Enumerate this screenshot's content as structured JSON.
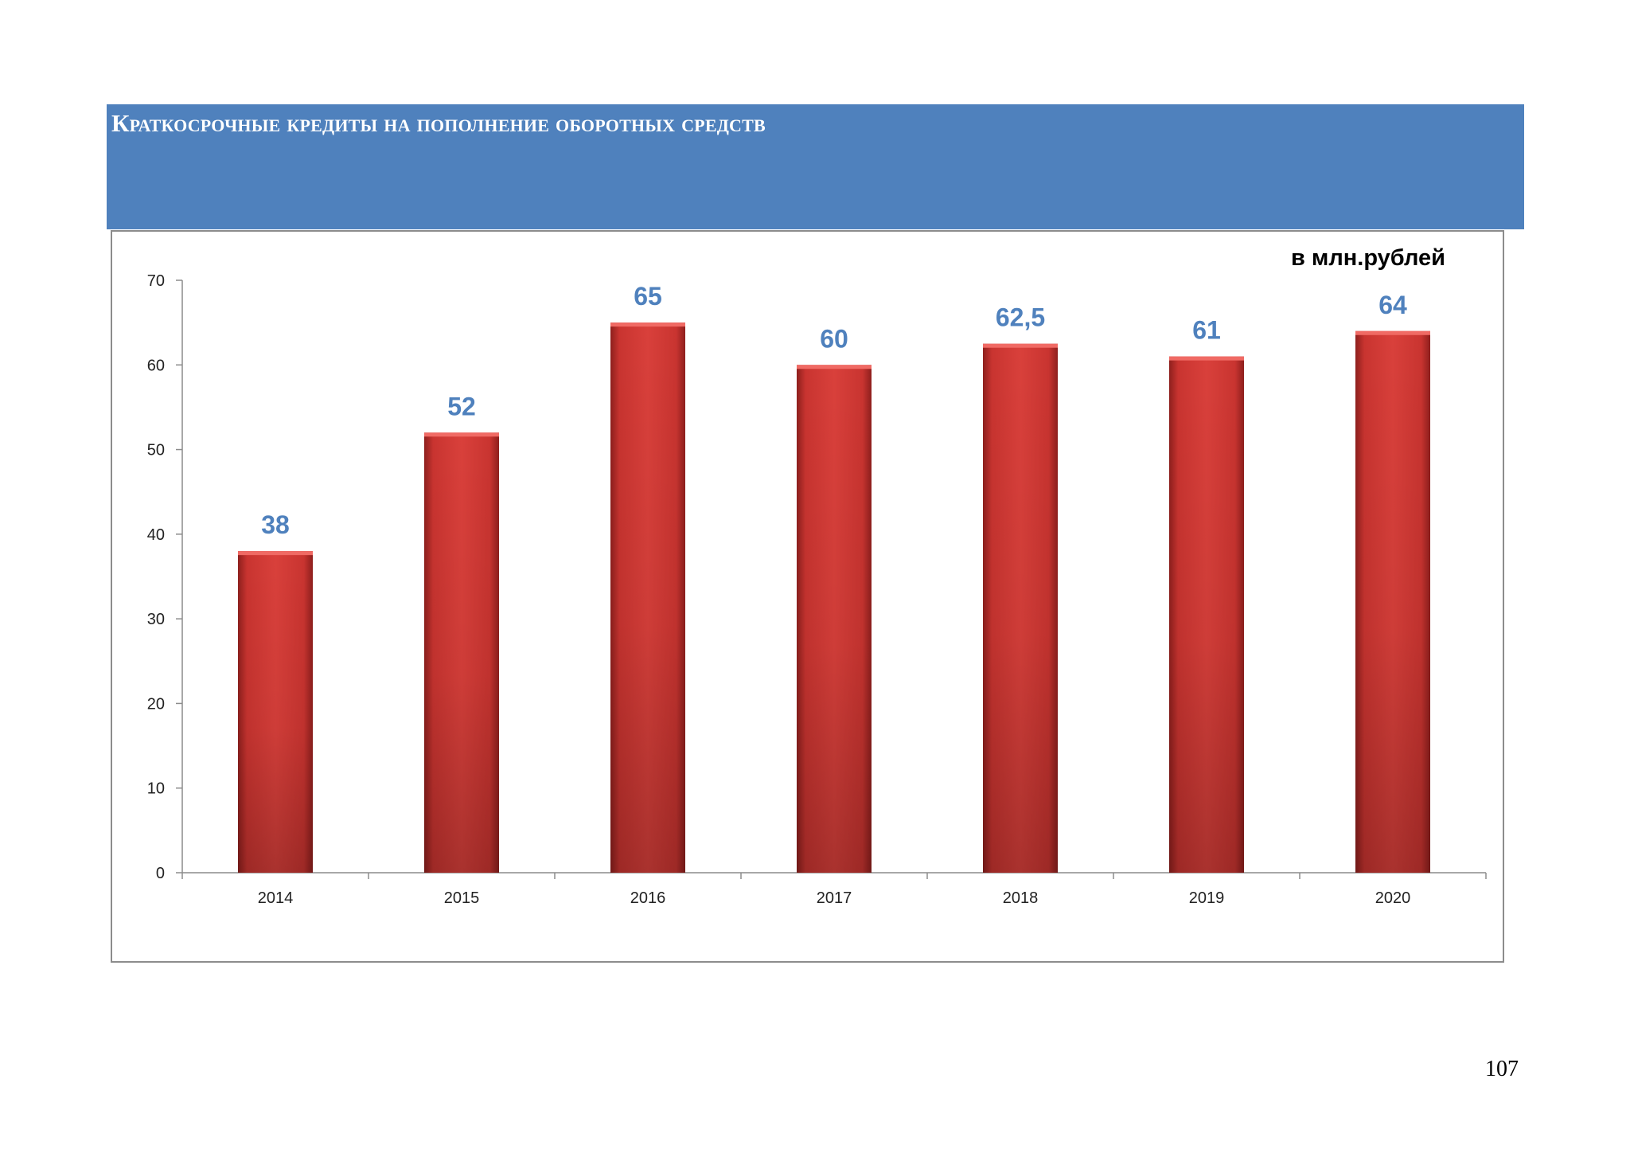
{
  "banner": {
    "title": "Краткосрочные кредиты на пополнение оборотных средств",
    "background": "#4f81bd"
  },
  "chart_data": {
    "type": "bar",
    "title": "",
    "unit_label": "в млн.рублей",
    "categories": [
      "2014",
      "2015",
      "2016",
      "2017",
      "2018",
      "2019",
      "2020"
    ],
    "values": [
      38,
      52,
      65,
      60,
      62.5,
      61,
      64
    ],
    "data_labels": [
      "38",
      "52",
      "65",
      "60",
      "62,5",
      "61",
      "64"
    ],
    "xlabel": "",
    "ylabel": "",
    "ylim": [
      0,
      70
    ],
    "yticks": [
      0,
      10,
      20,
      30,
      40,
      50,
      60,
      70
    ],
    "grid": false,
    "legend": "none",
    "bar_color": "#c8302e",
    "label_color": "#4f81bd"
  },
  "footer": {
    "page_number": "107"
  }
}
